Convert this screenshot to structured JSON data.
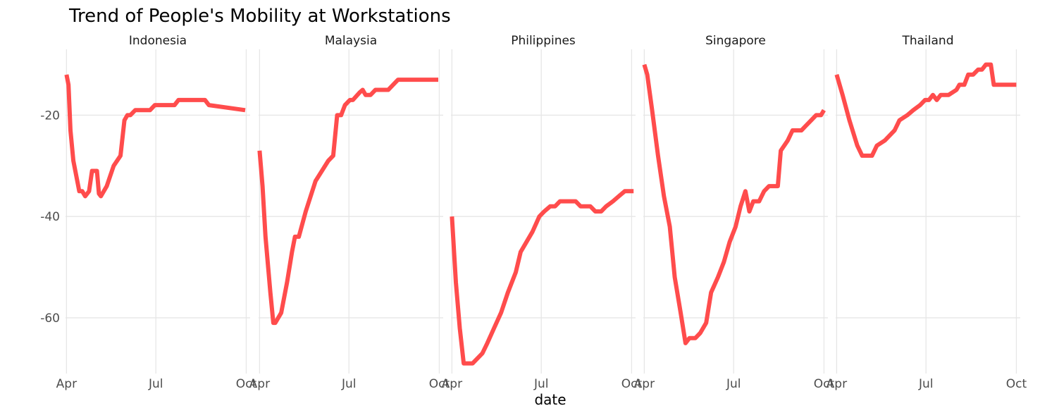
{
  "chart_data": {
    "type": "line",
    "title": "Trend of People's Mobility at Workstations",
    "xlabel": "date",
    "ylabel": "",
    "x_ticks": [
      "Apr",
      "Jul",
      "Oct"
    ],
    "x_range": [
      "2020-03-31",
      "2020-10-05"
    ],
    "y_ticks": [
      -20,
      -40,
      -60
    ],
    "ylim": [
      -71,
      -7
    ],
    "grid": true,
    "facets": [
      "Indonesia",
      "Malaysia",
      "Philippines",
      "Singapore",
      "Thailand"
    ],
    "series_color": "#FF4C4C",
    "series": [
      {
        "facet": "Indonesia",
        "points": [
          [
            "2020-04-01",
            -12
          ],
          [
            "2020-04-03",
            -14
          ],
          [
            "2020-04-05",
            -23
          ],
          [
            "2020-04-08",
            -29
          ],
          [
            "2020-04-14",
            -35
          ],
          [
            "2020-04-17",
            -35
          ],
          [
            "2020-04-20",
            -36
          ],
          [
            "2020-04-24",
            -35
          ],
          [
            "2020-04-27",
            -31
          ],
          [
            "2020-05-02",
            -31
          ],
          [
            "2020-05-04",
            -35.5
          ],
          [
            "2020-05-06",
            -36
          ],
          [
            "2020-05-12",
            -34
          ],
          [
            "2020-05-19",
            -30
          ],
          [
            "2020-05-26",
            -28
          ],
          [
            "2020-05-30",
            -21
          ],
          [
            "2020-06-02",
            -20
          ],
          [
            "2020-06-05",
            -20
          ],
          [
            "2020-06-10",
            -19
          ],
          [
            "2020-06-20",
            -19
          ],
          [
            "2020-06-25",
            -19
          ],
          [
            "2020-06-30",
            -18
          ],
          [
            "2020-07-20",
            -18
          ],
          [
            "2020-07-24",
            -17
          ],
          [
            "2020-08-10",
            -17
          ],
          [
            "2020-08-20",
            -17
          ],
          [
            "2020-08-24",
            -18
          ],
          [
            "2020-09-30",
            -19
          ]
        ]
      },
      {
        "facet": "Malaysia",
        "points": [
          [
            "2020-04-01",
            -27
          ],
          [
            "2020-04-04",
            -34
          ],
          [
            "2020-04-07",
            -44
          ],
          [
            "2020-04-12",
            -55
          ],
          [
            "2020-04-15",
            -61
          ],
          [
            "2020-04-17",
            -61
          ],
          [
            "2020-04-23",
            -59
          ],
          [
            "2020-04-29",
            -53
          ],
          [
            "2020-05-04",
            -47
          ],
          [
            "2020-05-07",
            -44
          ],
          [
            "2020-05-11",
            -44
          ],
          [
            "2020-05-18",
            -39
          ],
          [
            "2020-05-28",
            -33
          ],
          [
            "2020-06-10",
            -29
          ],
          [
            "2020-06-15",
            -28
          ],
          [
            "2020-06-19",
            -20
          ],
          [
            "2020-06-23",
            -20
          ],
          [
            "2020-06-27",
            -18
          ],
          [
            "2020-07-02",
            -17
          ],
          [
            "2020-07-05",
            -17
          ],
          [
            "2020-07-12",
            -15.5
          ],
          [
            "2020-07-15",
            -15
          ],
          [
            "2020-07-18",
            -16
          ],
          [
            "2020-07-23",
            -16
          ],
          [
            "2020-07-28",
            -15
          ],
          [
            "2020-08-10",
            -15
          ],
          [
            "2020-08-20",
            -13
          ],
          [
            "2020-09-10",
            -13
          ],
          [
            "2020-09-30",
            -13
          ]
        ]
      },
      {
        "facet": "Philippines",
        "points": [
          [
            "2020-04-01",
            -40
          ],
          [
            "2020-04-05",
            -53
          ],
          [
            "2020-04-09",
            -62
          ],
          [
            "2020-04-13",
            -69
          ],
          [
            "2020-04-22",
            -69
          ],
          [
            "2020-05-02",
            -67
          ],
          [
            "2020-05-07",
            -65
          ],
          [
            "2020-05-14",
            -62
          ],
          [
            "2020-05-21",
            -59
          ],
          [
            "2020-05-28",
            -55
          ],
          [
            "2020-06-05",
            -51
          ],
          [
            "2020-06-10",
            -47
          ],
          [
            "2020-06-22",
            -43
          ],
          [
            "2020-06-29",
            -40
          ],
          [
            "2020-07-04",
            -39
          ],
          [
            "2020-07-10",
            -38
          ],
          [
            "2020-07-15",
            -38
          ],
          [
            "2020-07-20",
            -37
          ],
          [
            "2020-08-05",
            -37
          ],
          [
            "2020-08-10",
            -38
          ],
          [
            "2020-08-20",
            -38
          ],
          [
            "2020-08-25",
            -39
          ],
          [
            "2020-08-31",
            -39
          ],
          [
            "2020-09-05",
            -38
          ],
          [
            "2020-09-12",
            -37
          ],
          [
            "2020-09-18",
            -36
          ],
          [
            "2020-09-24",
            -35
          ],
          [
            "2020-09-30",
            -35
          ],
          [
            "2020-10-03",
            -35
          ]
        ]
      },
      {
        "facet": "Singapore",
        "points": [
          [
            "2020-04-01",
            -10
          ],
          [
            "2020-04-04",
            -12
          ],
          [
            "2020-04-09",
            -19
          ],
          [
            "2020-04-15",
            -28
          ],
          [
            "2020-04-21",
            -36
          ],
          [
            "2020-04-27",
            -42
          ],
          [
            "2020-05-02",
            -52
          ],
          [
            "2020-05-08",
            -59
          ],
          [
            "2020-05-13",
            -65
          ],
          [
            "2020-05-17",
            -64
          ],
          [
            "2020-05-23",
            -64
          ],
          [
            "2020-05-28",
            -63
          ],
          [
            "2020-06-03",
            -61
          ],
          [
            "2020-06-08",
            -55
          ],
          [
            "2020-06-15",
            -52
          ],
          [
            "2020-06-21",
            -49
          ],
          [
            "2020-06-27",
            -45
          ],
          [
            "2020-07-03",
            -42
          ],
          [
            "2020-07-08",
            -38
          ],
          [
            "2020-07-13",
            -35
          ],
          [
            "2020-07-17",
            -39
          ],
          [
            "2020-07-21",
            -37
          ],
          [
            "2020-07-27",
            -37
          ],
          [
            "2020-08-01",
            -35
          ],
          [
            "2020-08-06",
            -34
          ],
          [
            "2020-08-15",
            -34
          ],
          [
            "2020-08-18",
            -27
          ],
          [
            "2020-08-25",
            -25
          ],
          [
            "2020-08-30",
            -23
          ],
          [
            "2020-09-08",
            -23
          ],
          [
            "2020-09-13",
            -22
          ],
          [
            "2020-09-18",
            -21
          ],
          [
            "2020-09-23",
            -20
          ],
          [
            "2020-09-28",
            -20
          ],
          [
            "2020-10-01",
            -19
          ]
        ]
      },
      {
        "facet": "Thailand",
        "points": [
          [
            "2020-04-01",
            -12
          ],
          [
            "2020-04-07",
            -16
          ],
          [
            "2020-04-14",
            -21
          ],
          [
            "2020-04-22",
            -26
          ],
          [
            "2020-04-27",
            -28
          ],
          [
            "2020-05-07",
            -28
          ],
          [
            "2020-05-12",
            -26
          ],
          [
            "2020-05-20",
            -25
          ],
          [
            "2020-05-30",
            -23
          ],
          [
            "2020-06-04",
            -21
          ],
          [
            "2020-06-12",
            -20
          ],
          [
            "2020-06-18",
            -19
          ],
          [
            "2020-06-25",
            -18
          ],
          [
            "2020-06-30",
            -17
          ],
          [
            "2020-07-04",
            -17
          ],
          [
            "2020-07-08",
            -16
          ],
          [
            "2020-07-12",
            -17
          ],
          [
            "2020-07-16",
            -16
          ],
          [
            "2020-07-24",
            -16
          ],
          [
            "2020-08-01",
            -15
          ],
          [
            "2020-08-04",
            -14
          ],
          [
            "2020-08-09",
            -14
          ],
          [
            "2020-08-13",
            -12
          ],
          [
            "2020-08-18",
            -12
          ],
          [
            "2020-08-23",
            -11
          ],
          [
            "2020-08-27",
            -11
          ],
          [
            "2020-08-31",
            -10
          ],
          [
            "2020-09-05",
            -10
          ],
          [
            "2020-09-08",
            -14
          ],
          [
            "2020-09-20",
            -14
          ],
          [
            "2020-10-01",
            -14
          ]
        ]
      }
    ]
  }
}
